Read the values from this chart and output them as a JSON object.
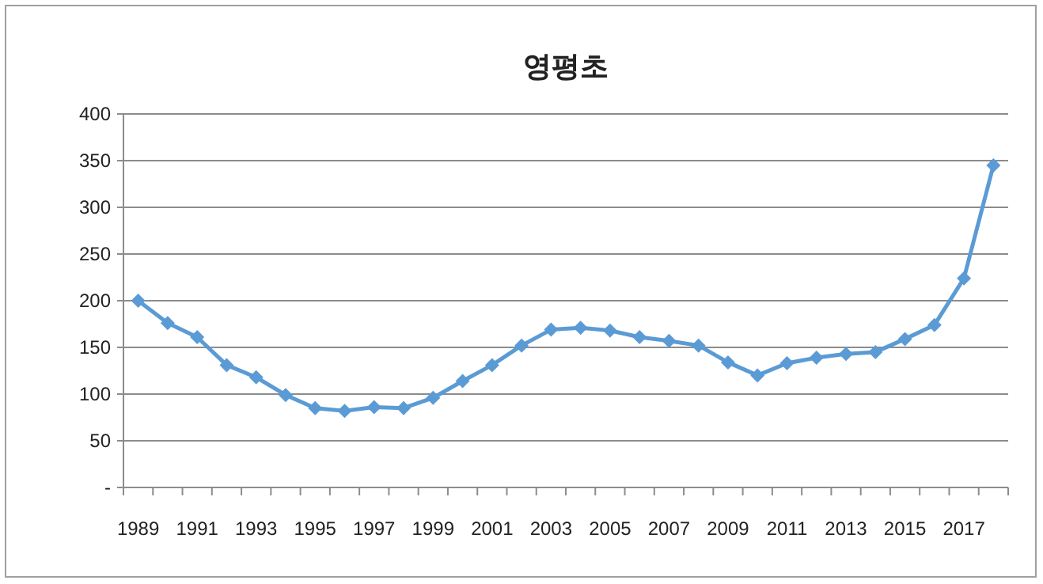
{
  "chart_data": {
    "type": "line",
    "title": "영평초",
    "categories": [
      "1989",
      null,
      "1991",
      null,
      "1993",
      null,
      "1995",
      null,
      "1997",
      null,
      "1999",
      null,
      "2001",
      null,
      "2003",
      null,
      "2005",
      null,
      "2007",
      null,
      "2009",
      null,
      "2011",
      null,
      "2013",
      null,
      "2015",
      null,
      "2017",
      null
    ],
    "series": [
      {
        "color": "#5b9bd5",
        "values": [
          200,
          176,
          161,
          131,
          118,
          99,
          85,
          82,
          86,
          85,
          96,
          114,
          131,
          152,
          169,
          171,
          168,
          161,
          157,
          152,
          134,
          120,
          133,
          139,
          143,
          145,
          159,
          174,
          224,
          345
        ]
      }
    ],
    "ylim": [
      0,
      400
    ],
    "yticks": [
      {
        "value": 0,
        "label": "-"
      },
      50,
      100,
      150,
      200,
      250,
      300,
      350,
      400
    ],
    "grid": "y",
    "marker": "diamond",
    "line_style": "solid"
  }
}
